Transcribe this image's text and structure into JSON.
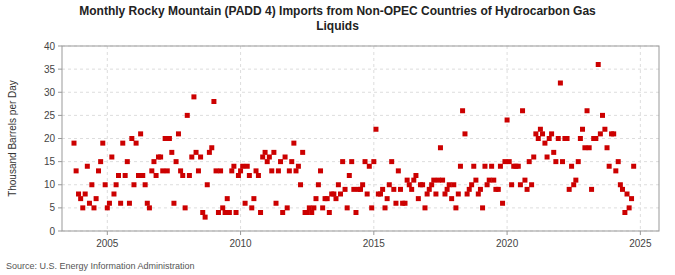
{
  "chart_data": {
    "type": "scatter",
    "title": "Monthly Rocky Mountain (PADD 4) Imports from Non-OPEC Countries of Hydrocarbon Gas\nLiquids",
    "ylabel": "Thousand Barrels per Day",
    "annotations": [
      "Source: U.S. Energy Information Administration"
    ],
    "color": "#cc0000",
    "marker": "square",
    "grid": true,
    "xlim": [
      2003.3,
      2025.7
    ],
    "xticks": [
      2005,
      2010,
      2015,
      2020,
      2025
    ],
    "ylim": [
      0,
      40
    ],
    "yticks": [
      0,
      5,
      10,
      15,
      20,
      25,
      30,
      35,
      40
    ],
    "x": [
      2003.75,
      2003.83,
      2003.92,
      2004.0,
      2004.08,
      2004.17,
      2004.25,
      2004.33,
      2004.42,
      2004.5,
      2004.58,
      2004.67,
      2004.75,
      2004.83,
      2004.92,
      2005.0,
      2005.08,
      2005.17,
      2005.25,
      2005.33,
      2005.42,
      2005.5,
      2005.58,
      2005.67,
      2005.75,
      2005.83,
      2005.92,
      2006.0,
      2006.08,
      2006.17,
      2006.25,
      2006.33,
      2006.42,
      2006.5,
      2006.58,
      2006.67,
      2006.75,
      2006.83,
      2006.92,
      2007.0,
      2007.08,
      2007.17,
      2007.25,
      2007.33,
      2007.42,
      2007.5,
      2007.58,
      2007.67,
      2007.75,
      2007.83,
      2007.92,
      2008.0,
      2008.08,
      2008.17,
      2008.25,
      2008.33,
      2008.42,
      2008.5,
      2008.58,
      2008.67,
      2008.75,
      2008.83,
      2008.92,
      2009.0,
      2009.08,
      2009.17,
      2009.25,
      2009.33,
      2009.42,
      2009.5,
      2009.58,
      2009.67,
      2009.75,
      2009.83,
      2009.92,
      2010.0,
      2010.08,
      2010.17,
      2010.25,
      2010.33,
      2010.42,
      2010.5,
      2010.58,
      2010.67,
      2010.75,
      2010.83,
      2010.92,
      2011.0,
      2011.08,
      2011.17,
      2011.25,
      2011.33,
      2011.42,
      2011.5,
      2011.58,
      2011.67,
      2011.75,
      2011.83,
      2011.92,
      2012.0,
      2012.08,
      2012.17,
      2012.25,
      2012.33,
      2012.42,
      2012.5,
      2012.58,
      2012.67,
      2012.75,
      2012.83,
      2012.92,
      2013.0,
      2013.08,
      2013.17,
      2013.25,
      2013.33,
      2013.42,
      2013.5,
      2013.58,
      2013.67,
      2013.75,
      2013.83,
      2013.92,
      2014.0,
      2014.08,
      2014.17,
      2014.25,
      2014.33,
      2014.42,
      2014.5,
      2014.58,
      2014.67,
      2014.75,
      2014.83,
      2014.92,
      2015.0,
      2015.08,
      2015.17,
      2015.25,
      2015.33,
      2015.42,
      2015.5,
      2015.58,
      2015.67,
      2015.75,
      2015.83,
      2015.92,
      2016.0,
      2016.08,
      2016.17,
      2016.25,
      2016.33,
      2016.42,
      2016.5,
      2016.58,
      2016.67,
      2016.75,
      2016.83,
      2016.92,
      2017.0,
      2017.08,
      2017.17,
      2017.25,
      2017.33,
      2017.42,
      2017.5,
      2017.58,
      2017.67,
      2017.75,
      2017.83,
      2017.92,
      2018.0,
      2018.08,
      2018.17,
      2018.25,
      2018.33,
      2018.42,
      2018.5,
      2018.58,
      2018.67,
      2018.75,
      2018.83,
      2018.92,
      2019.0,
      2019.08,
      2019.17,
      2019.25,
      2019.33,
      2019.42,
      2019.5,
      2019.58,
      2019.67,
      2019.75,
      2019.83,
      2019.92,
      2020.0,
      2020.08,
      2020.17,
      2020.25,
      2020.33,
      2020.42,
      2020.5,
      2020.58,
      2020.67,
      2020.75,
      2020.83,
      2020.92,
      2021.0,
      2021.08,
      2021.17,
      2021.25,
      2021.33,
      2021.42,
      2021.5,
      2021.58,
      2021.67,
      2021.75,
      2021.83,
      2021.92,
      2022.0,
      2022.08,
      2022.17,
      2022.25,
      2022.33,
      2022.42,
      2022.5,
      2022.58,
      2022.67,
      2022.75,
      2022.83,
      2022.92,
      2023.0,
      2023.08,
      2023.17,
      2023.25,
      2023.33,
      2023.42,
      2023.5,
      2023.58,
      2023.67,
      2023.75,
      2023.83,
      2023.92,
      2024.0,
      2024.08,
      2024.17,
      2024.25,
      2024.33,
      2024.42,
      2024.5,
      2024.58,
      2024.67,
      2024.75
    ],
    "values": [
      19,
      13,
      8,
      7,
      5,
      8,
      14,
      6,
      10,
      5,
      7,
      13,
      15,
      19,
      10,
      5,
      6,
      16,
      8,
      10,
      12,
      6,
      19,
      12,
      15,
      6,
      20,
      10,
      19,
      12,
      21,
      12,
      10,
      6,
      5,
      13,
      15,
      12,
      16,
      16,
      13,
      20,
      13,
      20,
      17,
      6,
      15,
      21,
      13,
      12,
      5,
      25,
      12,
      16,
      29,
      17,
      13,
      16,
      4,
      3,
      10,
      17,
      18,
      28,
      13,
      4,
      13,
      5,
      4,
      7,
      4,
      13,
      14,
      4,
      12,
      13,
      14,
      6,
      14,
      12,
      5,
      7,
      13,
      12,
      4,
      16,
      17,
      15,
      16,
      13,
      17,
      6,
      13,
      15,
      4,
      16,
      5,
      13,
      15,
      19,
      13,
      14,
      10,
      17,
      4,
      4,
      5,
      4,
      5,
      7,
      10,
      13,
      5,
      7,
      7,
      4,
      8,
      8,
      7,
      10,
      8,
      15,
      9,
      5,
      12,
      15,
      9,
      4,
      9,
      9,
      10,
      15,
      8,
      14,
      5,
      15,
      22,
      8,
      8,
      9,
      5,
      7,
      10,
      15,
      9,
      6,
      13,
      9,
      6,
      6,
      11,
      10,
      9,
      11,
      12,
      7,
      10,
      10,
      5,
      8,
      9,
      10,
      11,
      8,
      11,
      18,
      11,
      8,
      9,
      10,
      7,
      10,
      5,
      8,
      14,
      26,
      21,
      8,
      9,
      10,
      14,
      11,
      8,
      9,
      5,
      14,
      10,
      11,
      14,
      11,
      9,
      9,
      14,
      6,
      15,
      24,
      15,
      10,
      14,
      14,
      14,
      10,
      26,
      11,
      9,
      15,
      10,
      16,
      21,
      20,
      22,
      21,
      19,
      16,
      20,
      21,
      17,
      15,
      20,
      32,
      15,
      20,
      20,
      9,
      14,
      10,
      11,
      15,
      20,
      22,
      18,
      26,
      18,
      9,
      20,
      20,
      36,
      21,
      25,
      22,
      18,
      14,
      21,
      21,
      13,
      15,
      10,
      9,
      4,
      8,
      5,
      7,
      14
    ]
  }
}
